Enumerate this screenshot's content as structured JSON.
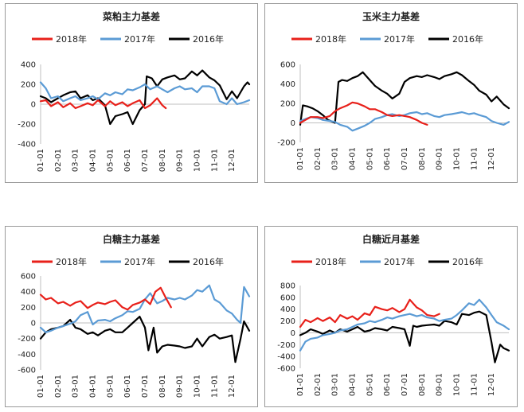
{
  "chart_data": [
    {
      "type": "line",
      "title": "菜粕主力基差",
      "categories": [
        "01-01",
        "02-01",
        "03-01",
        "04-01",
        "05-01",
        "06-01",
        "07-01",
        "08-01",
        "09-01",
        "10-01",
        "11-01",
        "12-01"
      ],
      "ylim": [
        -400,
        400
      ],
      "yticks": [
        -400,
        -200,
        0,
        200,
        400
      ],
      "legend_position": "top",
      "series": [
        {
          "name": "2018年",
          "color": "#e8201a",
          "x": [
            0,
            0.3,
            0.6,
            1.0,
            1.3,
            1.7,
            2.0,
            2.3,
            2.7,
            3.0,
            3.3,
            3.7,
            4.0,
            4.3,
            4.7,
            5.0,
            5.3,
            5.7,
            6.0,
            6.3,
            6.7,
            7.0,
            7.2
          ],
          "y": [
            30,
            40,
            -20,
            20,
            -30,
            10,
            -40,
            -20,
            10,
            -10,
            40,
            -20,
            30,
            -10,
            20,
            -20,
            10,
            40,
            -40,
            -10,
            60,
            -10,
            -40
          ]
        },
        {
          "name": "2017年",
          "color": "#5b9bd5",
          "x": [
            0,
            0.3,
            0.6,
            1.0,
            1.3,
            1.7,
            2.0,
            2.3,
            2.7,
            3.0,
            3.3,
            3.7,
            4.0,
            4.3,
            4.7,
            5.0,
            5.3,
            5.7,
            6.0,
            6.3,
            6.7,
            7.0,
            7.3,
            7.7,
            8.0,
            8.3,
            8.7,
            9.0,
            9.3,
            9.7,
            10.0,
            10.3,
            10.7,
            11.0,
            11.3,
            11.7,
            12.0
          ],
          "y": [
            220,
            160,
            60,
            80,
            30,
            60,
            80,
            40,
            60,
            80,
            50,
            110,
            90,
            120,
            100,
            150,
            140,
            170,
            200,
            150,
            180,
            150,
            120,
            160,
            180,
            150,
            160,
            120,
            180,
            180,
            160,
            30,
            0,
            60,
            0,
            20,
            40
          ]
        },
        {
          "name": "2016年",
          "color": "#000000",
          "x": [
            0,
            0.3,
            0.6,
            1.0,
            1.3,
            1.7,
            2.0,
            2.3,
            2.7,
            3.0,
            3.3,
            3.7,
            4.0,
            4.3,
            4.7,
            5.0,
            5.3,
            5.7,
            6.0,
            6.1,
            6.4,
            6.7,
            7.0,
            7.3,
            7.7,
            8.0,
            8.3,
            8.7,
            9.0,
            9.3,
            9.7,
            10.0,
            10.3,
            10.7,
            11.0,
            11.3,
            11.7,
            11.9,
            12.0
          ],
          "y": [
            80,
            60,
            20,
            60,
            90,
            120,
            130,
            60,
            90,
            40,
            60,
            -10,
            -200,
            -120,
            -100,
            -80,
            -200,
            -60,
            0,
            280,
            260,
            180,
            250,
            270,
            290,
            250,
            260,
            330,
            290,
            340,
            270,
            240,
            190,
            50,
            130,
            60,
            180,
            220,
            200
          ]
        }
      ]
    },
    {
      "type": "line",
      "title": "玉米主力基差",
      "categories": [
        "01-01",
        "02-01",
        "03-01",
        "04-01",
        "05-01",
        "06-01",
        "07-01",
        "08-01",
        "09-01",
        "10-01",
        "11-01",
        "12-01"
      ],
      "ylim": [
        -200,
        600
      ],
      "yticks": [
        -200,
        0,
        200,
        400,
        600
      ],
      "legend_position": "top",
      "series": [
        {
          "name": "2018年",
          "color": "#e8201a",
          "x": [
            0,
            0.3,
            0.6,
            1.0,
            1.3,
            1.7,
            2.0,
            2.3,
            2.7,
            3.0,
            3.3,
            3.7,
            4.0,
            4.3,
            4.7,
            5.0,
            5.3,
            5.7,
            6.0,
            6.3,
            6.7,
            7.0,
            7.3
          ],
          "y": [
            0,
            30,
            60,
            60,
            50,
            70,
            120,
            150,
            180,
            210,
            200,
            170,
            140,
            140,
            110,
            80,
            70,
            80,
            70,
            60,
            30,
            0,
            -20
          ]
        },
        {
          "name": "2017年",
          "color": "#5b9bd5",
          "x": [
            0,
            0.3,
            0.6,
            1.0,
            1.3,
            1.7,
            2.0,
            2.3,
            2.7,
            3.0,
            3.3,
            3.7,
            4.0,
            4.3,
            4.7,
            5.0,
            5.3,
            5.7,
            6.0,
            6.3,
            6.7,
            7.0,
            7.3,
            7.7,
            8.0,
            8.3,
            8.7,
            9.0,
            9.3,
            9.7,
            10.0,
            10.3,
            10.7,
            11.0,
            11.3,
            11.7,
            12.0
          ],
          "y": [
            20,
            40,
            60,
            50,
            30,
            20,
            10,
            -20,
            -40,
            -80,
            -60,
            -30,
            0,
            40,
            60,
            80,
            90,
            70,
            80,
            100,
            110,
            90,
            100,
            70,
            60,
            80,
            90,
            100,
            110,
            90,
            100,
            80,
            60,
            20,
            0,
            -20,
            10
          ]
        },
        {
          "name": "2016年",
          "color": "#000000",
          "x": [
            0,
            0.15,
            0.4,
            0.7,
            1.0,
            1.3,
            1.6,
            2.0,
            2.2,
            2.4,
            2.7,
            3.0,
            3.3,
            3.6,
            4.0,
            4.3,
            4.7,
            5.0,
            5.3,
            5.7,
            6.0,
            6.3,
            6.7,
            7.0,
            7.3,
            7.7,
            8.0,
            8.3,
            8.7,
            9.0,
            9.3,
            9.7,
            10.0,
            10.3,
            10.7,
            11.0,
            11.3,
            11.7,
            12.0
          ],
          "y": [
            -20,
            180,
            170,
            150,
            120,
            80,
            30,
            0,
            420,
            440,
            430,
            460,
            480,
            520,
            440,
            380,
            330,
            300,
            250,
            300,
            420,
            460,
            480,
            470,
            490,
            470,
            450,
            480,
            500,
            520,
            490,
            430,
            390,
            330,
            290,
            220,
            270,
            190,
            150
          ]
        }
      ]
    },
    {
      "type": "line",
      "title": "白糖主力基差",
      "categories": [
        "01-01",
        "02-01",
        "03-01",
        "04-01",
        "05-01",
        "06-01",
        "07-01",
        "08-01",
        "09-01",
        "10-01",
        "11-01",
        "12-01"
      ],
      "ylim": [
        -600,
        600
      ],
      "yticks": [
        -600,
        -400,
        -200,
        0,
        200,
        400,
        600
      ],
      "legend_position": "top",
      "series": [
        {
          "name": "2018年",
          "color": "#e8201a",
          "x": [
            0,
            0.3,
            0.6,
            1.0,
            1.3,
            1.7,
            2.0,
            2.3,
            2.7,
            3.0,
            3.3,
            3.7,
            4.0,
            4.3,
            4.7,
            5.0,
            5.3,
            5.7,
            6.0,
            6.3,
            6.6,
            6.9,
            7.2,
            7.5
          ],
          "y": [
            360,
            300,
            320,
            250,
            270,
            220,
            260,
            280,
            190,
            230,
            260,
            240,
            270,
            290,
            200,
            170,
            230,
            260,
            300,
            240,
            400,
            450,
            320,
            200
          ]
        },
        {
          "name": "2017年",
          "color": "#5b9bd5",
          "x": [
            0,
            0.3,
            0.6,
            1.0,
            1.3,
            1.7,
            2.0,
            2.3,
            2.7,
            3.0,
            3.3,
            3.7,
            4.0,
            4.3,
            4.7,
            5.0,
            5.3,
            5.7,
            6.0,
            6.3,
            6.7,
            7.0,
            7.3,
            7.7,
            8.0,
            8.3,
            8.7,
            9.0,
            9.3,
            9.7,
            10.0,
            10.3,
            10.7,
            11.0,
            11.3,
            11.5,
            11.7,
            12.0
          ],
          "y": [
            -60,
            -120,
            -100,
            -60,
            -40,
            -10,
            20,
            100,
            140,
            -20,
            30,
            40,
            20,
            60,
            100,
            150,
            140,
            180,
            300,
            380,
            250,
            280,
            320,
            300,
            320,
            300,
            350,
            420,
            400,
            480,
            300,
            260,
            160,
            120,
            40,
            0,
            460,
            340
          ]
        },
        {
          "name": "2016年",
          "color": "#000000",
          "x": [
            0,
            0.3,
            0.6,
            1.0,
            1.3,
            1.7,
            2.0,
            2.3,
            2.7,
            3.0,
            3.3,
            3.7,
            4.0,
            4.3,
            4.7,
            5.0,
            5.3,
            5.7,
            6.0,
            6.2,
            6.5,
            6.7,
            7.0,
            7.3,
            7.7,
            8.0,
            8.3,
            8.7,
            9.0,
            9.3,
            9.7,
            10.0,
            10.3,
            10.7,
            11.0,
            11.2,
            11.5,
            11.7,
            12.0
          ],
          "y": [
            -200,
            -120,
            -80,
            -60,
            -40,
            40,
            -60,
            -80,
            -140,
            -120,
            -160,
            -100,
            -80,
            -120,
            -120,
            -60,
            0,
            80,
            -60,
            -350,
            -60,
            -380,
            -300,
            -280,
            -290,
            -300,
            -320,
            -300,
            -200,
            -300,
            -180,
            -150,
            -200,
            -180,
            -160,
            -500,
            -200,
            20,
            -100
          ]
        }
      ]
    },
    {
      "type": "line",
      "title": "白糖近月基差",
      "categories": [
        "01-01",
        "02-01",
        "03-01",
        "04-01",
        "05-01",
        "06-01",
        "07-01",
        "08-01",
        "09-01",
        "10-01",
        "11-01",
        "12-01"
      ],
      "ylim": [
        -600,
        800
      ],
      "yticks": [
        -600,
        -400,
        -200,
        0,
        200,
        400,
        600,
        800
      ],
      "legend_position": "top",
      "series": [
        {
          "name": "2018年",
          "color": "#e8201a",
          "x": [
            0,
            0.3,
            0.6,
            1.0,
            1.3,
            1.7,
            2.0,
            2.3,
            2.7,
            3.0,
            3.3,
            3.7,
            4.0,
            4.3,
            4.7,
            5.0,
            5.3,
            5.7,
            6.0,
            6.3,
            6.7,
            7.0,
            7.3,
            7.7,
            8.0
          ],
          "y": [
            100,
            220,
            180,
            250,
            200,
            260,
            180,
            300,
            240,
            280,
            220,
            330,
            300,
            440,
            400,
            380,
            420,
            350,
            400,
            560,
            430,
            380,
            300,
            280,
            320
          ]
        },
        {
          "name": "2017年",
          "color": "#5b9bd5",
          "x": [
            0,
            0.3,
            0.6,
            1.0,
            1.3,
            1.7,
            2.0,
            2.3,
            2.7,
            3.0,
            3.3,
            3.7,
            4.0,
            4.3,
            4.7,
            5.0,
            5.3,
            5.7,
            6.0,
            6.3,
            6.7,
            7.0,
            7.3,
            7.7,
            8.0,
            8.3,
            8.7,
            9.0,
            9.3,
            9.7,
            10.0,
            10.3,
            10.7,
            11.0,
            11.3,
            11.7,
            12.0
          ],
          "y": [
            -300,
            -150,
            -100,
            -80,
            -40,
            -20,
            0,
            40,
            60,
            100,
            140,
            160,
            200,
            180,
            220,
            260,
            240,
            280,
            300,
            320,
            280,
            300,
            260,
            240,
            200,
            220,
            240,
            300,
            380,
            500,
            470,
            560,
            430,
            300,
            180,
            120,
            60
          ]
        },
        {
          "name": "2016年",
          "color": "#000000",
          "x": [
            0,
            0.3,
            0.6,
            1.0,
            1.3,
            1.7,
            2.0,
            2.3,
            2.7,
            3.0,
            3.3,
            3.7,
            4.0,
            4.3,
            4.7,
            5.0,
            5.3,
            5.7,
            6.0,
            6.3,
            6.5,
            6.7,
            7.0,
            7.3,
            7.7,
            8.0,
            8.3,
            8.7,
            9.0,
            9.3,
            9.7,
            10.0,
            10.3,
            10.7,
            11.0,
            11.2,
            11.5,
            11.7,
            12.0
          ],
          "y": [
            -40,
            0,
            60,
            20,
            -20,
            40,
            0,
            60,
            20,
            60,
            100,
            20,
            40,
            80,
            60,
            40,
            100,
            80,
            60,
            -220,
            120,
            100,
            120,
            130,
            140,
            120,
            200,
            180,
            140,
            320,
            300,
            340,
            360,
            300,
            -160,
            -500,
            -200,
            -260,
            -300
          ]
        }
      ]
    }
  ]
}
